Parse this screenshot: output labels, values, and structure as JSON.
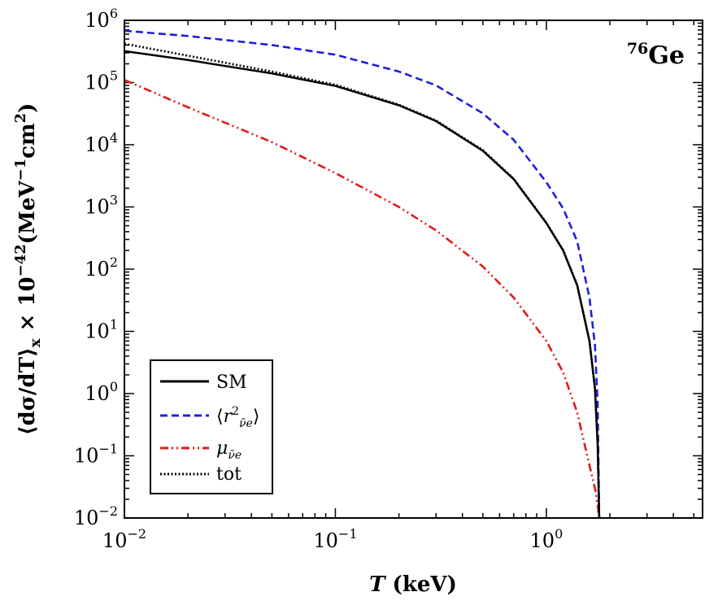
{
  "chart_data": {
    "type": "line",
    "xscale": "log",
    "yscale": "log",
    "xlim": [
      0.01,
      5.5
    ],
    "ylim": [
      0.01,
      1000000
    ],
    "xlabel": "T (keV)",
    "ylabel": "⟨dσ/dT⟩ₓ × 10⁻⁴² (MeV⁻¹cm²)",
    "annotation": "76Ge",
    "x_ticks": [
      {
        "value": 0.01,
        "base": "10",
        "exp": "−2"
      },
      {
        "value": 0.1,
        "base": "10",
        "exp": "−1"
      },
      {
        "value": 1,
        "base": "10",
        "exp": "0"
      }
    ],
    "y_ticks": [
      {
        "value": 0.01,
        "base": "10",
        "exp": "−2"
      },
      {
        "value": 0.1,
        "base": "10",
        "exp": "−1"
      },
      {
        "value": 1,
        "base": "10",
        "exp": "0"
      },
      {
        "value": 10,
        "base": "10",
        "exp": "1"
      },
      {
        "value": 100,
        "base": "10",
        "exp": "2"
      },
      {
        "value": 1000,
        "base": "10",
        "exp": "3"
      },
      {
        "value": 10000,
        "base": "10",
        "exp": "4"
      },
      {
        "value": 100000,
        "base": "10",
        "exp": "5"
      },
      {
        "value": 1000000,
        "base": "10",
        "exp": "6"
      }
    ],
    "legend_position": "lower-left",
    "series": [
      {
        "name": "SM",
        "color": "#000000",
        "style": "solid",
        "x": [
          0.01,
          0.02,
          0.05,
          0.1,
          0.2,
          0.3,
          0.5,
          0.7,
          1.0,
          1.2,
          1.4,
          1.6,
          1.7,
          1.75,
          1.78
        ],
        "y": [
          320000,
          230000,
          140000,
          88000,
          43000,
          24000,
          8000,
          2800,
          550,
          200,
          55,
          7,
          1.2,
          0.15,
          0.01
        ]
      },
      {
        "name": "⟨r²ν̄e⟩",
        "color": "#1f1fdc",
        "style": "dashed",
        "x": [
          0.01,
          0.02,
          0.05,
          0.1,
          0.2,
          0.3,
          0.5,
          0.7,
          1.0,
          1.2,
          1.4,
          1.6,
          1.7,
          1.75,
          1.78
        ],
        "y": [
          680000,
          560000,
          400000,
          280000,
          150000,
          90000,
          32000,
          12000,
          2500,
          950,
          280,
          35,
          6,
          0.7,
          0.01
        ]
      },
      {
        "name": "μν̄e",
        "color": "#e01b1b",
        "style": "dashdotdot",
        "x": [
          0.01,
          0.02,
          0.05,
          0.1,
          0.2,
          0.3,
          0.5,
          0.7,
          1.0,
          1.2,
          1.4,
          1.6,
          1.7,
          1.75,
          1.78
        ],
        "y": [
          110000,
          40000,
          11000,
          3500,
          1000,
          420,
          110,
          35,
          7,
          2.2,
          0.5,
          0.07,
          0.03,
          0.016,
          0.01
        ]
      },
      {
        "name": "tot",
        "color": "#000000",
        "style": "dotted",
        "x": [
          0.01,
          0.02,
          0.05,
          0.1,
          0.2,
          0.3,
          0.5,
          0.7,
          1.0,
          1.2,
          1.4,
          1.6,
          1.7,
          1.75,
          1.78
        ],
        "y": [
          420000,
          270000,
          150000,
          92000,
          44000,
          24500,
          8200,
          2850,
          560,
          205,
          56,
          7.1,
          1.2,
          0.15,
          0.01
        ]
      }
    ]
  }
}
